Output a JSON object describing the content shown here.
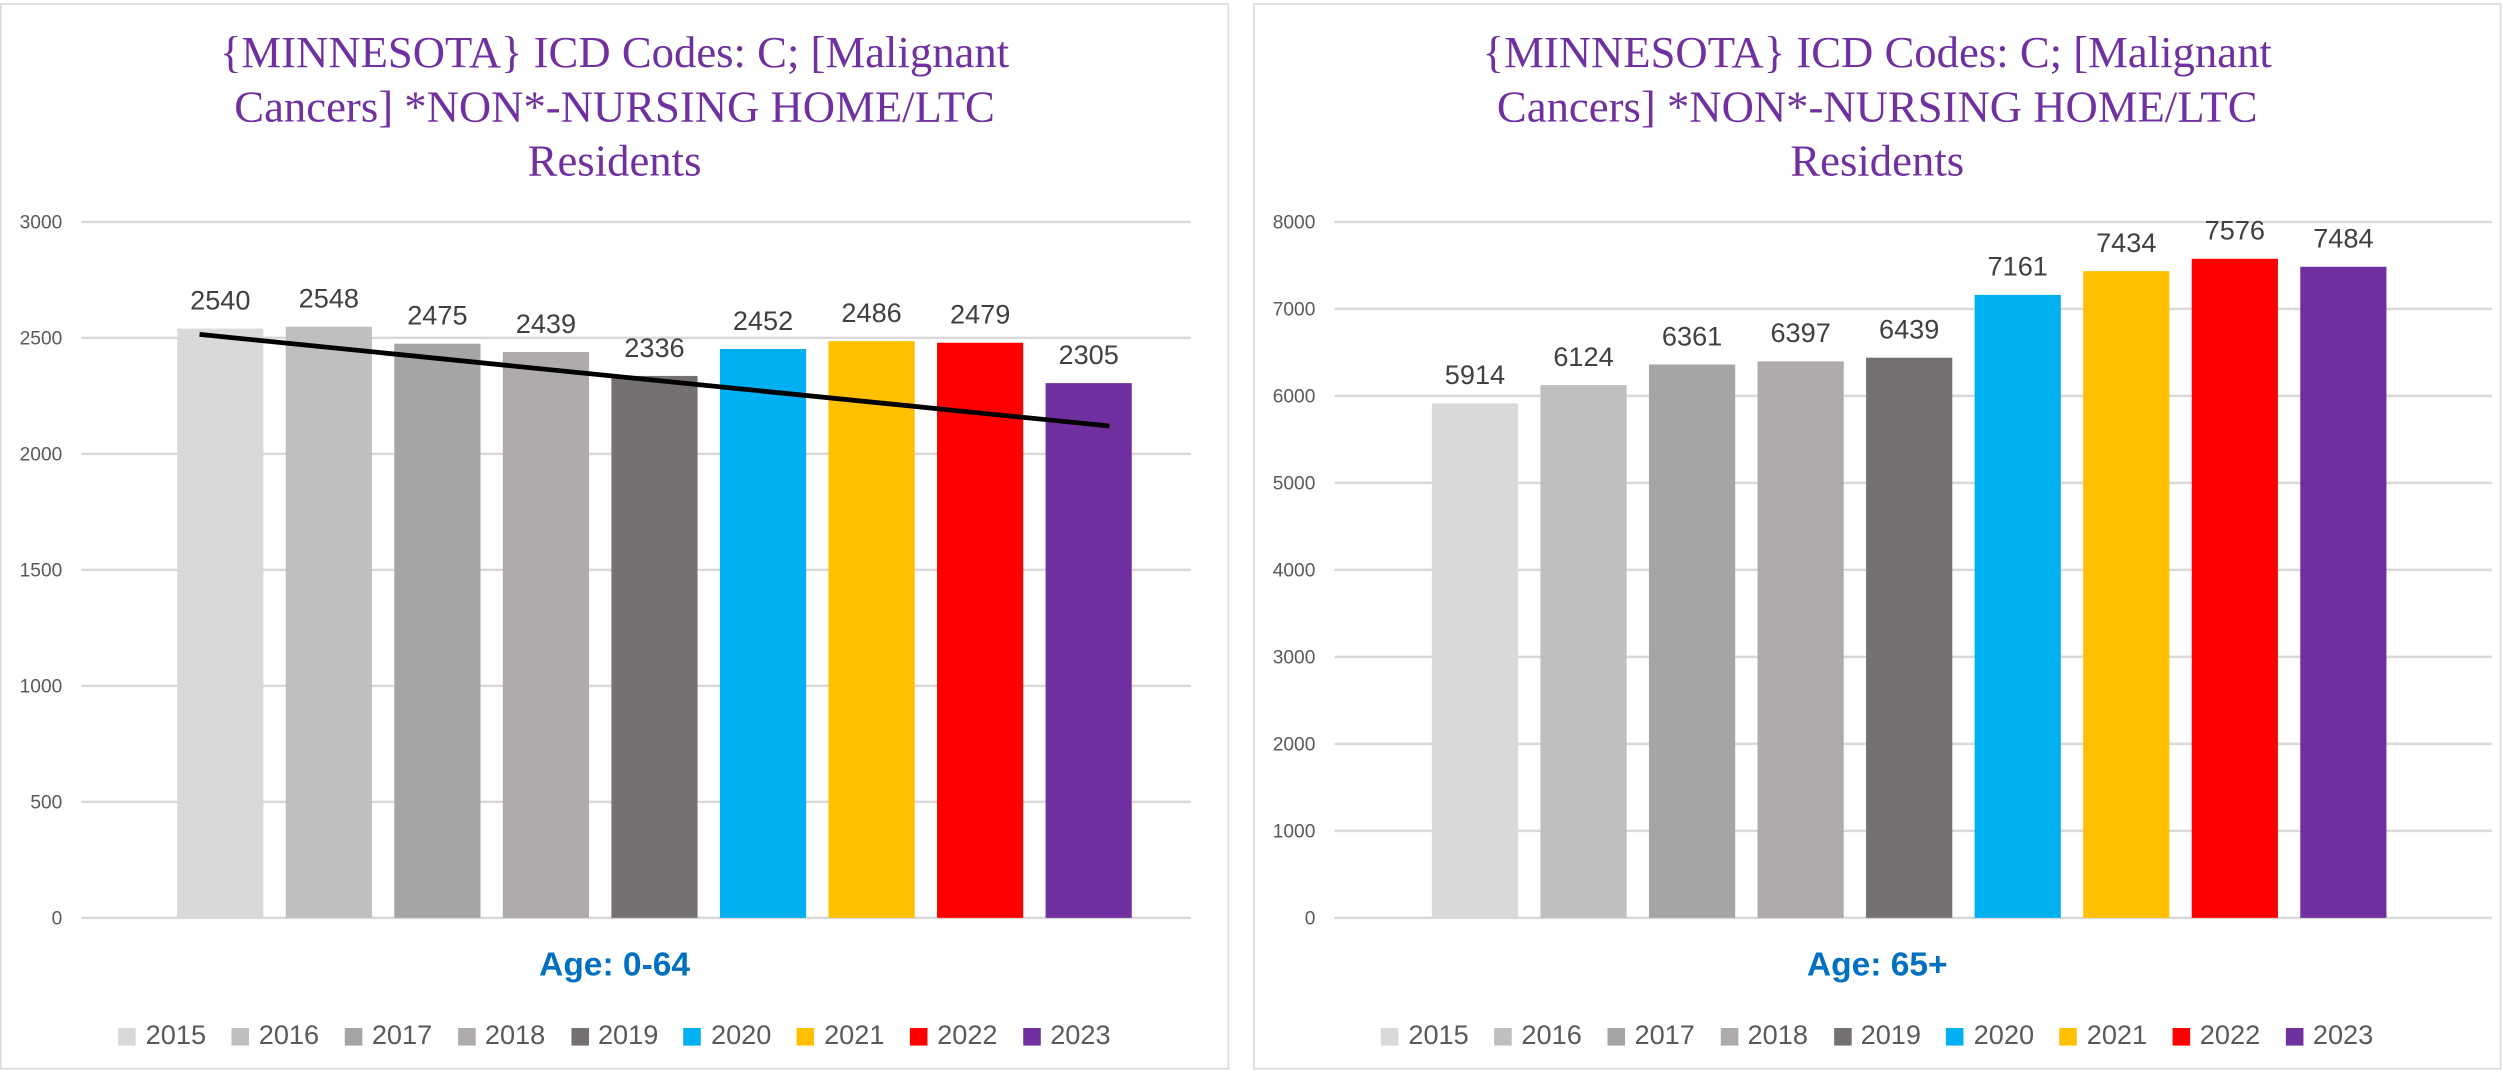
{
  "chart_data": [
    {
      "type": "bar",
      "title_lines": [
        "{MINNESOTA}  ICD Codes: C;  [Malignant",
        "Cancers] *NON*-NURSING HOME/LTC",
        "Residents"
      ],
      "xlabel": "Age: 0-64",
      "ylabel": "",
      "categories": [
        "2015",
        "2016",
        "2017",
        "2018",
        "2019",
        "2020",
        "2021",
        "2022",
        "2023"
      ],
      "values": [
        2540,
        2548,
        2475,
        2439,
        2336,
        2452,
        2486,
        2479,
        2305
      ],
      "ylim": [
        0,
        3000
      ],
      "yticks": [
        "0",
        "500",
        "1000",
        "1500",
        "2000",
        "2500",
        "3000"
      ],
      "ytick_values": [
        0,
        500,
        1000,
        1500,
        2000,
        2500,
        3000
      ],
      "trendline": {
        "type": "linear",
        "start": 2515,
        "end": 2120
      },
      "grid": true,
      "legend": "bottom"
    },
    {
      "type": "bar",
      "title_lines": [
        "{MINNESOTA}  ICD Codes: C;  [Malignant",
        "Cancers] *NON*-NURSING HOME/LTC",
        "Residents"
      ],
      "xlabel": "Age: 65+",
      "ylabel": "",
      "categories": [
        "2015",
        "2016",
        "2017",
        "2018",
        "2019",
        "2020",
        "2021",
        "2022",
        "2023"
      ],
      "values": [
        5914,
        6124,
        6361,
        6397,
        6439,
        7161,
        7434,
        7576,
        7484
      ],
      "ylim": [
        0,
        8000
      ],
      "yticks": [
        "0",
        "1000",
        "2000",
        "3000",
        "4000",
        "5000",
        "6000",
        "7000",
        "8000"
      ],
      "ytick_values": [
        0,
        1000,
        2000,
        3000,
        4000,
        5000,
        6000,
        7000,
        8000
      ],
      "grid": true,
      "legend": "bottom"
    }
  ],
  "colors": [
    "#D9D9D9",
    "#BFBFBF",
    "#A5A5A5",
    "#AFABAB",
    "#767171",
    "#00B0F0",
    "#FFC000",
    "#FF0000",
    "#7030A0"
  ]
}
